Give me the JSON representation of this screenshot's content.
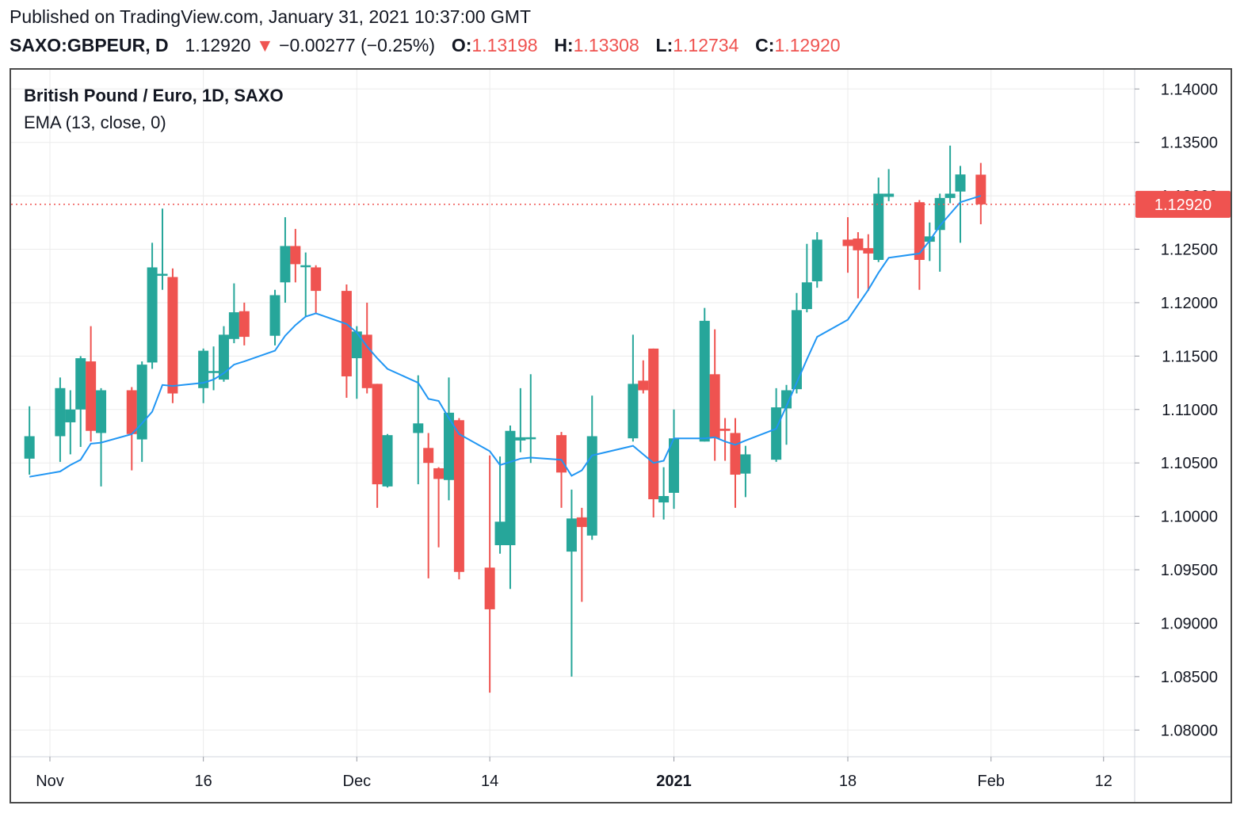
{
  "header": {
    "published": "Published on TradingView.com, January 31, 2021 10:37:00 GMT",
    "symbol": "SAXO:GBPEUR, D",
    "last": "1.12920",
    "change_arrow": "▼",
    "change": "−0.00277 (−0.25%)",
    "o_label": "O:",
    "o_value": "1.13198",
    "h_label": "H:",
    "h_value": "1.13308",
    "l_label": "L:",
    "l_value": "1.12734",
    "c_label": "C:",
    "c_value": "1.12920"
  },
  "legend": {
    "title": "British Pound / Euro, 1D, SAXO",
    "indicator": "EMA (13, close, 0)"
  },
  "colors": {
    "up": "#26a69a",
    "down": "#ef5350",
    "ema": "#2196f3",
    "grid": "#ebebeb",
    "last_price_line": "#ef5350"
  },
  "chart_data": {
    "type": "candlestick",
    "title": "British Pound / Euro, 1D, SAXO",
    "ylim": [
      1.0775,
      1.1418
    ],
    "y_ticks": [
      "1.14000",
      "1.13500",
      "1.13000",
      "1.12500",
      "1.12000",
      "1.11500",
      "1.11000",
      "1.10500",
      "1.10000",
      "1.09500",
      "1.09000",
      "1.08500",
      "1.08000"
    ],
    "x_ticks": [
      {
        "label": "Nov",
        "date": "2020-11-01",
        "bold": false
      },
      {
        "label": "16",
        "date": "2020-11-16",
        "bold": false
      },
      {
        "label": "Dec",
        "date": "2020-12-01",
        "bold": false
      },
      {
        "label": "14",
        "date": "2020-12-14",
        "bold": false
      },
      {
        "label": "2021",
        "date": "2021-01-01",
        "bold": true
      },
      {
        "label": "18",
        "date": "2021-01-18",
        "bold": false
      },
      {
        "label": "Feb",
        "date": "2021-02-01",
        "bold": false
      },
      {
        "label": "12",
        "date": "2021-02-12",
        "bold": false
      }
    ],
    "last_price": 1.1292,
    "last_price_label": "1.12920",
    "candles": [
      {
        "date": "2020-10-30",
        "o": 1.1054,
        "h": 1.1103,
        "l": 1.1039,
        "c": 1.1075
      },
      {
        "date": "2020-11-02",
        "o": 1.1075,
        "h": 1.113,
        "l": 1.1051,
        "c": 1.112
      },
      {
        "date": "2020-11-03",
        "o": 1.1088,
        "h": 1.1118,
        "l": 1.1058,
        "c": 1.11
      },
      {
        "date": "2020-11-04",
        "o": 1.11,
        "h": 1.115,
        "l": 1.1065,
        "c": 1.1148
      },
      {
        "date": "2020-11-05",
        "o": 1.1145,
        "h": 1.1178,
        "l": 1.107,
        "c": 1.108
      },
      {
        "date": "2020-11-06",
        "o": 1.1078,
        "h": 1.112,
        "l": 1.1028,
        "c": 1.1118
      },
      {
        "date": "2020-11-09",
        "o": 1.1118,
        "h": 1.1121,
        "l": 1.1043,
        "c": 1.1077
      },
      {
        "date": "2020-11-10",
        "o": 1.1072,
        "h": 1.1145,
        "l": 1.1051,
        "c": 1.1142
      },
      {
        "date": "2020-11-11",
        "o": 1.1144,
        "h": 1.1256,
        "l": 1.1138,
        "c": 1.1233
      },
      {
        "date": "2020-11-12",
        "o": 1.1227,
        "h": 1.1288,
        "l": 1.1212,
        "c": 1.1227
      },
      {
        "date": "2020-11-13",
        "o": 1.1224,
        "h": 1.1232,
        "l": 1.1106,
        "c": 1.1115
      },
      {
        "date": "2020-11-16",
        "o": 1.112,
        "h": 1.1157,
        "l": 1.1106,
        "c": 1.1155
      },
      {
        "date": "2020-11-17",
        "o": 1.1136,
        "h": 1.1159,
        "l": 1.1118,
        "c": 1.1136
      },
      {
        "date": "2020-11-18",
        "o": 1.1128,
        "h": 1.1178,
        "l": 1.1126,
        "c": 1.117
      },
      {
        "date": "2020-11-19",
        "o": 1.1166,
        "h": 1.1218,
        "l": 1.1162,
        "c": 1.1191
      },
      {
        "date": "2020-11-20",
        "o": 1.1192,
        "h": 1.12,
        "l": 1.116,
        "c": 1.1168
      },
      {
        "date": "2020-11-23",
        "o": 1.1169,
        "h": 1.1212,
        "l": 1.116,
        "c": 1.1207
      },
      {
        "date": "2020-11-24",
        "o": 1.1219,
        "h": 1.128,
        "l": 1.12,
        "c": 1.1253
      },
      {
        "date": "2020-11-25",
        "o": 1.1253,
        "h": 1.1269,
        "l": 1.1219,
        "c": 1.1236
      },
      {
        "date": "2020-11-26",
        "o": 1.1235,
        "h": 1.1247,
        "l": 1.1187,
        "c": 1.1235
      },
      {
        "date": "2020-11-27",
        "o": 1.1233,
        "h": 1.1235,
        "l": 1.119,
        "c": 1.1211
      },
      {
        "date": "2020-11-30",
        "o": 1.1211,
        "h": 1.1217,
        "l": 1.1111,
        "c": 1.1131
      },
      {
        "date": "2020-12-01",
        "o": 1.1148,
        "h": 1.1178,
        "l": 1.111,
        "c": 1.1173
      },
      {
        "date": "2020-12-02",
        "o": 1.117,
        "h": 1.12,
        "l": 1.1115,
        "c": 1.112
      },
      {
        "date": "2020-12-03",
        "o": 1.1124,
        "h": 1.1124,
        "l": 1.1008,
        "c": 1.103
      },
      {
        "date": "2020-12-04",
        "o": 1.1028,
        "h": 1.1077,
        "l": 1.1027,
        "c": 1.1076
      },
      {
        "date": "2020-12-07",
        "o": 1.1078,
        "h": 1.1132,
        "l": 1.103,
        "c": 1.1087
      },
      {
        "date": "2020-12-08",
        "o": 1.1064,
        "h": 1.1078,
        "l": 1.0942,
        "c": 1.105
      },
      {
        "date": "2020-12-09",
        "o": 1.1045,
        "h": 1.1046,
        "l": 1.0971,
        "c": 1.1035
      },
      {
        "date": "2020-12-10",
        "o": 1.1034,
        "h": 1.113,
        "l": 1.1015,
        "c": 1.1097
      },
      {
        "date": "2020-12-11",
        "o": 1.109,
        "h": 1.1092,
        "l": 1.0941,
        "c": 1.0948
      },
      {
        "date": "2020-12-14",
        "o": 1.0952,
        "h": 1.1057,
        "l": 1.0835,
        "c": 1.0913
      },
      {
        "date": "2020-12-15",
        "o": 1.0973,
        "h": 1.1056,
        "l": 1.0965,
        "c": 1.0995
      },
      {
        "date": "2020-12-16",
        "o": 1.0973,
        "h": 1.1085,
        "l": 1.0932,
        "c": 1.108
      },
      {
        "date": "2020-12-17",
        "o": 1.1071,
        "h": 1.112,
        "l": 1.106,
        "c": 1.1074
      },
      {
        "date": "2020-12-18",
        "o": 1.1073,
        "h": 1.1133,
        "l": 1.105,
        "c": 1.1074
      },
      {
        "date": "2020-12-21",
        "o": 1.1076,
        "h": 1.1079,
        "l": 1.1008,
        "c": 1.1041
      },
      {
        "date": "2020-12-22",
        "o": 1.0967,
        "h": 1.1025,
        "l": 1.085,
        "c": 1.0998
      },
      {
        "date": "2020-12-23",
        "o": 1.0999,
        "h": 1.1008,
        "l": 1.092,
        "c": 1.099
      },
      {
        "date": "2020-12-24",
        "o": 1.0982,
        "h": 1.1113,
        "l": 1.0978,
        "c": 1.1075
      },
      {
        "date": "2020-12-28",
        "o": 1.1073,
        "h": 1.117,
        "l": 1.107,
        "c": 1.1124
      },
      {
        "date": "2020-12-29",
        "o": 1.1127,
        "h": 1.1146,
        "l": 1.1115,
        "c": 1.1118
      },
      {
        "date": "2020-12-30",
        "o": 1.1157,
        "h": 1.1157,
        "l": 1.0999,
        "c": 1.1016
      },
      {
        "date": "2020-12-31",
        "o": 1.1013,
        "h": 1.1046,
        "l": 1.0997,
        "c": 1.1019
      },
      {
        "date": "2021-01-01",
        "o": 1.1022,
        "h": 1.11,
        "l": 1.1007,
        "c": 1.1073
      },
      {
        "date": "2021-01-04",
        "o": 1.107,
        "h": 1.1195,
        "l": 1.107,
        "c": 1.1183
      },
      {
        "date": "2021-01-05",
        "o": 1.1133,
        "h": 1.1175,
        "l": 1.1052,
        "c": 1.1073
      },
      {
        "date": "2021-01-06",
        "o": 1.1082,
        "h": 1.1092,
        "l": 1.1052,
        "c": 1.108
      },
      {
        "date": "2021-01-07",
        "o": 1.1078,
        "h": 1.1092,
        "l": 1.1008,
        "c": 1.1039
      },
      {
        "date": "2021-01-08",
        "o": 1.104,
        "h": 1.1066,
        "l": 1.1018,
        "c": 1.1058
      },
      {
        "date": "2021-01-11",
        "o": 1.1053,
        "h": 1.112,
        "l": 1.1051,
        "c": 1.1102
      },
      {
        "date": "2021-01-12",
        "o": 1.1101,
        "h": 1.1123,
        "l": 1.1067,
        "c": 1.1118
      },
      {
        "date": "2021-01-13",
        "o": 1.1119,
        "h": 1.1209,
        "l": 1.1115,
        "c": 1.1193
      },
      {
        "date": "2021-01-14",
        "o": 1.1194,
        "h": 1.1255,
        "l": 1.1191,
        "c": 1.1219
      },
      {
        "date": "2021-01-15",
        "o": 1.122,
        "h": 1.1266,
        "l": 1.1214,
        "c": 1.1259
      },
      {
        "date": "2021-01-18",
        "o": 1.1259,
        "h": 1.128,
        "l": 1.1228,
        "c": 1.1253
      },
      {
        "date": "2021-01-19",
        "o": 1.126,
        "h": 1.1266,
        "l": 1.1204,
        "c": 1.1249
      },
      {
        "date": "2021-01-20",
        "o": 1.1251,
        "h": 1.1264,
        "l": 1.1211,
        "c": 1.1246
      },
      {
        "date": "2021-01-21",
        "o": 1.124,
        "h": 1.1317,
        "l": 1.1238,
        "c": 1.1302
      },
      {
        "date": "2021-01-22",
        "o": 1.1299,
        "h": 1.1325,
        "l": 1.1295,
        "c": 1.1302
      },
      {
        "date": "2021-01-25",
        "o": 1.1294,
        "h": 1.1296,
        "l": 1.1212,
        "c": 1.124
      },
      {
        "date": "2021-01-26",
        "o": 1.1257,
        "h": 1.1275,
        "l": 1.1239,
        "c": 1.1262
      },
      {
        "date": "2021-01-27",
        "o": 1.1268,
        "h": 1.1302,
        "l": 1.1229,
        "c": 1.1298
      },
      {
        "date": "2021-01-28",
        "o": 1.1298,
        "h": 1.1347,
        "l": 1.1293,
        "c": 1.1302
      },
      {
        "date": "2021-01-29",
        "o": 1.1304,
        "h": 1.1328,
        "l": 1.1256,
        "c": 1.132
      },
      {
        "date": "2021-01-31",
        "o": 1.13198,
        "h": 1.13308,
        "l": 1.12734,
        "c": 1.1292
      }
    ],
    "ema": {
      "name": "EMA (13, close, 0)",
      "values": [
        1.1037,
        1.1042,
        1.1048,
        1.1053,
        1.1068,
        1.1069,
        1.1077,
        1.1087,
        1.1098,
        1.1123,
        1.1122,
        1.1125,
        1.1128,
        1.1134,
        1.1142,
        1.1145,
        1.1155,
        1.1169,
        1.1179,
        1.1187,
        1.119,
        1.118,
        1.1172,
        1.1159,
        1.1148,
        1.1138,
        1.1125,
        1.111,
        1.1108,
        1.1092,
        1.1077,
        1.1061,
        1.1048,
        1.1051,
        1.1054,
        1.1055,
        1.1053,
        1.1038,
        1.1043,
        1.1057,
        1.1066,
        1.1058,
        1.105,
        1.1052,
        1.1073,
        1.1073,
        1.1074,
        1.107,
        1.1067,
        1.1071,
        1.1082,
        1.1103,
        1.1125,
        1.1147,
        1.1168,
        1.1184,
        1.1198,
        1.1212,
        1.1228,
        1.1242,
        1.1246,
        1.1258,
        1.1272,
        1.1283,
        1.1294,
        1.13
      ]
    }
  }
}
